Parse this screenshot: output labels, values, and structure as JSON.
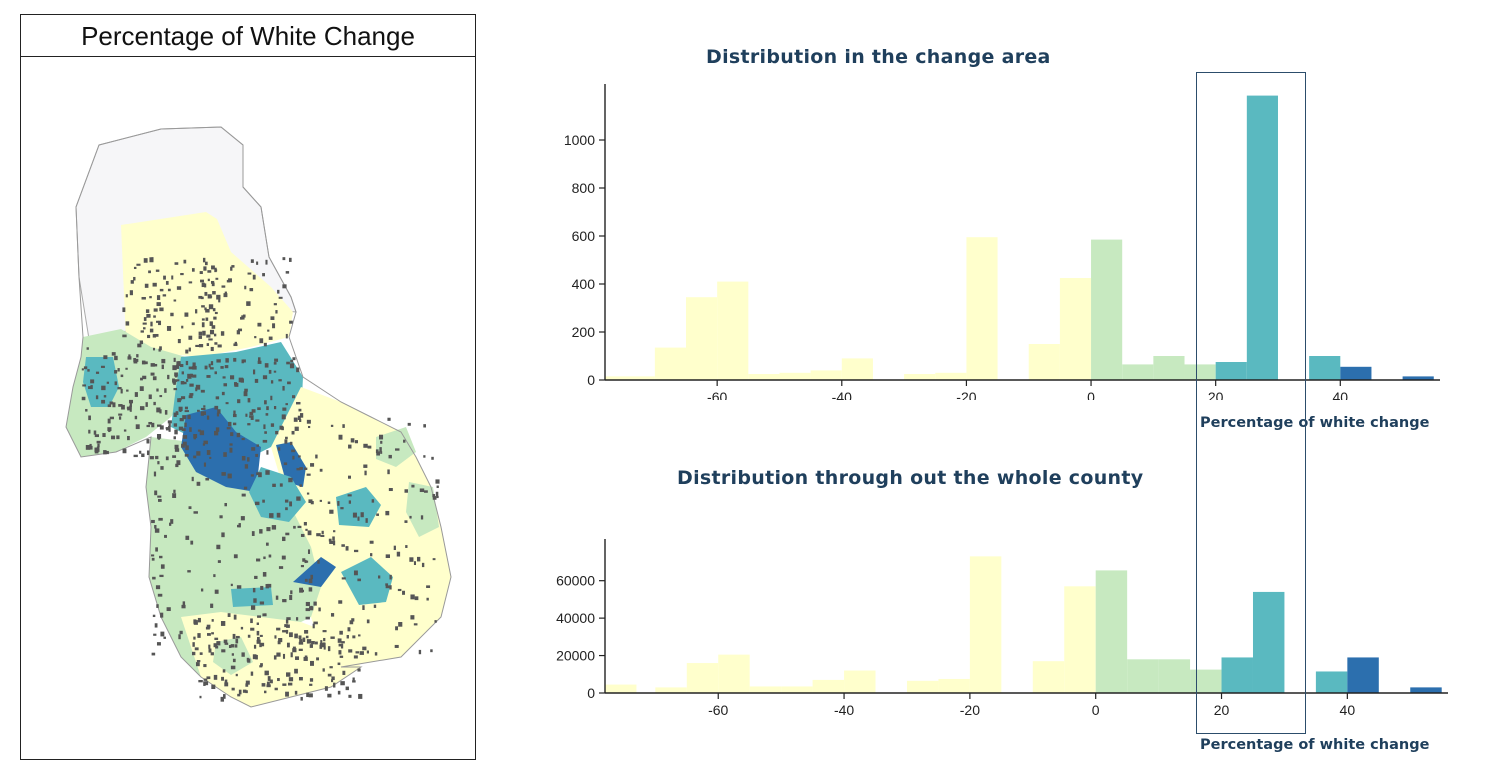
{
  "map": {
    "title": "Percentage of White Change",
    "colors": {
      "no_data": "#f6f6f8",
      "bin1": "#ffffcc",
      "bin2": "#c7e9c0",
      "bin3": "#5ab9c0",
      "bin4": "#2c6fae",
      "dots": "#555555"
    }
  },
  "chart_data": [
    {
      "type": "bar",
      "title": "Distribution in the change area",
      "xlabel": "Percentage of white change",
      "ylabel": "",
      "xlim": [
        -78,
        56
      ],
      "ylim": [
        0,
        1200
      ],
      "xticks": [
        -60,
        -40,
        -20,
        0,
        20,
        40
      ],
      "yticks": [
        0,
        200,
        400,
        600,
        800,
        1000
      ],
      "bins": [
        {
          "x0": -78,
          "x1": -70,
          "value": 15,
          "color": "#ffffcc"
        },
        {
          "x0": -70,
          "x1": -65,
          "value": 135,
          "color": "#ffffcc"
        },
        {
          "x0": -65,
          "x1": -60,
          "value": 345,
          "color": "#ffffcc"
        },
        {
          "x0": -60,
          "x1": -55,
          "value": 410,
          "color": "#ffffcc"
        },
        {
          "x0": -55,
          "x1": -50,
          "value": 25,
          "color": "#ffffcc"
        },
        {
          "x0": -50,
          "x1": -45,
          "value": 30,
          "color": "#ffffcc"
        },
        {
          "x0": -45,
          "x1": -40,
          "value": 40,
          "color": "#ffffcc"
        },
        {
          "x0": -40,
          "x1": -35,
          "value": 90,
          "color": "#ffffcc"
        },
        {
          "x0": -30,
          "x1": -25,
          "value": 25,
          "color": "#ffffcc"
        },
        {
          "x0": -25,
          "x1": -20,
          "value": 30,
          "color": "#ffffcc"
        },
        {
          "x0": -20,
          "x1": -15,
          "value": 595,
          "color": "#ffffcc"
        },
        {
          "x0": -10,
          "x1": -5,
          "value": 150,
          "color": "#ffffcc"
        },
        {
          "x0": -5,
          "x1": 0,
          "value": 425,
          "color": "#ffffcc"
        },
        {
          "x0": 0,
          "x1": 5,
          "value": 585,
          "color": "#c7e9c0"
        },
        {
          "x0": 5,
          "x1": 10,
          "value": 65,
          "color": "#c7e9c0"
        },
        {
          "x0": 10,
          "x1": 15,
          "value": 100,
          "color": "#c7e9c0"
        },
        {
          "x0": 15,
          "x1": 20,
          "value": 65,
          "color": "#c7e9c0"
        },
        {
          "x0": 20,
          "x1": 25,
          "value": 75,
          "color": "#5ab9c0"
        },
        {
          "x0": 25,
          "x1": 30,
          "value": 1185,
          "color": "#5ab9c0"
        },
        {
          "x0": 35,
          "x1": 40,
          "value": 100,
          "color": "#5ab9c0"
        },
        {
          "x0": 40,
          "x1": 45,
          "value": 55,
          "color": "#2c6fae"
        },
        {
          "x0": 50,
          "x1": 55,
          "value": 15,
          "color": "#2c6fae"
        }
      ]
    },
    {
      "type": "bar",
      "title": "Distribution through out the whole county",
      "xlabel": "Percentage of white change",
      "ylabel": "",
      "xlim": [
        -78,
        56
      ],
      "ylim": [
        0,
        78000
      ],
      "xticks": [
        -60,
        -40,
        -20,
        0,
        20,
        40
      ],
      "yticks": [
        0,
        20000,
        40000,
        60000
      ],
      "bins": [
        {
          "x0": -78,
          "x1": -73,
          "value": 4500,
          "color": "#ffffcc"
        },
        {
          "x0": -70,
          "x1": -65,
          "value": 3000,
          "color": "#ffffcc"
        },
        {
          "x0": -65,
          "x1": -60,
          "value": 16000,
          "color": "#ffffcc"
        },
        {
          "x0": -60,
          "x1": -55,
          "value": 20500,
          "color": "#ffffcc"
        },
        {
          "x0": -55,
          "x1": -50,
          "value": 3500,
          "color": "#ffffcc"
        },
        {
          "x0": -50,
          "x1": -45,
          "value": 3500,
          "color": "#ffffcc"
        },
        {
          "x0": -45,
          "x1": -40,
          "value": 7000,
          "color": "#ffffcc"
        },
        {
          "x0": -40,
          "x1": -35,
          "value": 12000,
          "color": "#ffffcc"
        },
        {
          "x0": -30,
          "x1": -25,
          "value": 6500,
          "color": "#ffffcc"
        },
        {
          "x0": -25,
          "x1": -20,
          "value": 7500,
          "color": "#ffffcc"
        },
        {
          "x0": -20,
          "x1": -15,
          "value": 73000,
          "color": "#ffffcc"
        },
        {
          "x0": -10,
          "x1": -5,
          "value": 17000,
          "color": "#ffffcc"
        },
        {
          "x0": -5,
          "x1": 0,
          "value": 57000,
          "color": "#ffffcc"
        },
        {
          "x0": 0,
          "x1": 5,
          "value": 65500,
          "color": "#c7e9c0"
        },
        {
          "x0": 5,
          "x1": 10,
          "value": 18000,
          "color": "#c7e9c0"
        },
        {
          "x0": 10,
          "x1": 15,
          "value": 18000,
          "color": "#c7e9c0"
        },
        {
          "x0": 15,
          "x1": 20,
          "value": 12500,
          "color": "#c7e9c0"
        },
        {
          "x0": 20,
          "x1": 25,
          "value": 19000,
          "color": "#5ab9c0"
        },
        {
          "x0": 25,
          "x1": 30,
          "value": 54000,
          "color": "#5ab9c0"
        },
        {
          "x0": 35,
          "x1": 40,
          "value": 11500,
          "color": "#5ab9c0"
        },
        {
          "x0": 40,
          "x1": 45,
          "value": 19000,
          "color": "#2c6fae"
        },
        {
          "x0": 50,
          "x1": 55,
          "value": 3000,
          "color": "#2c6fae"
        }
      ]
    }
  ]
}
